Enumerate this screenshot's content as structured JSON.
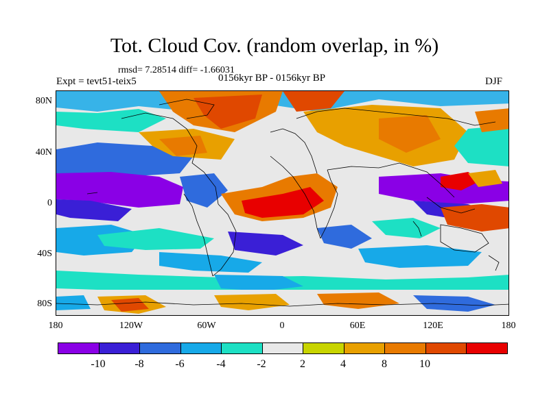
{
  "title": "Tot. Cloud Cov. (random overlap, in %)",
  "stats": "rmsd= 7.28514 diff= -1.66031",
  "experiment": "Expt = tevt51-teix5",
  "period": "0156kyr BP - 0156kyr BP",
  "season": "DJF",
  "lat_labels": [
    "80N",
    "40N",
    "0",
    "40S",
    "80S"
  ],
  "lon_labels": [
    "180",
    "120W",
    "60W",
    "0",
    "60E",
    "120E",
    "180"
  ],
  "colorbar": {
    "colors": [
      "#8a00e6",
      "#3a1fd6",
      "#2f6bdd",
      "#17a9e8",
      "#1de0c4",
      "#e8e8e8",
      "#c8d400",
      "#e8a000",
      "#e87a00",
      "#e04800",
      "#e80000"
    ],
    "labels": [
      "-10",
      "-8",
      "-6",
      "-4",
      "-2",
      "2",
      "4",
      "8",
      "10"
    ]
  }
}
